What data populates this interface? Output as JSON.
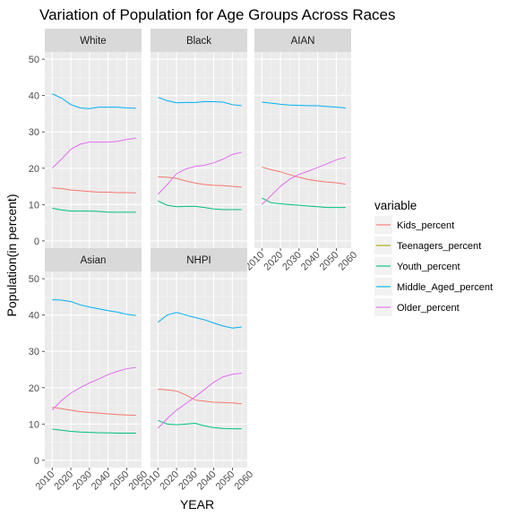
{
  "chart_data": {
    "type": "line",
    "title": "Variation of Population for Age Groups Across Races",
    "xlabel": "YEAR",
    "ylabel": "Population(in percent)",
    "x": [
      2010,
      2015,
      2020,
      2025,
      2030,
      2035,
      2040,
      2045,
      2050,
      2055
    ],
    "xlim": [
      2006,
      2058
    ],
    "ylim": [
      -2,
      52
    ],
    "x_ticks": [
      "2010",
      "2020",
      "2030",
      "2040",
      "2050",
      "2060"
    ],
    "y_ticks": [
      "0",
      "10",
      "20",
      "30",
      "40",
      "50"
    ],
    "grid": true,
    "legend": {
      "title": "variable",
      "position": "right",
      "entries": [
        "Kids_percent",
        "Teenagers_percent",
        "Youth_percent",
        "Middle_Aged_percent",
        "Older_percent"
      ]
    },
    "colors": {
      "Kids_percent": "#F8766D",
      "Teenagers_percent": "#A3A500",
      "Youth_percent": "#00BF7D",
      "Middle_Aged_percent": "#00B0F6",
      "Older_percent": "#E76BF3"
    },
    "panels": [
      {
        "name": "White",
        "series": [
          {
            "name": "Kids_percent",
            "values": [
              14.6,
              14.4,
              14.0,
              13.8,
              13.6,
              13.4,
              13.4,
              13.3,
              13.3,
              13.2
            ]
          },
          {
            "name": "Youth_percent",
            "values": [
              9.0,
              8.5,
              8.2,
              8.2,
              8.2,
              8.1,
              7.9,
              7.9,
              7.9,
              7.9
            ]
          },
          {
            "name": "Middle_Aged_percent",
            "values": [
              40.5,
              39.3,
              37.5,
              36.6,
              36.4,
              36.8,
              36.8,
              36.8,
              36.6,
              36.5
            ]
          },
          {
            "name": "Older_percent",
            "values": [
              20.0,
              22.5,
              25.2,
              26.6,
              27.2,
              27.2,
              27.2,
              27.4,
              27.9,
              28.3
            ]
          }
        ]
      },
      {
        "name": "Black",
        "series": [
          {
            "name": "Kids_percent",
            "values": [
              17.6,
              17.5,
              17.2,
              16.5,
              15.9,
              15.5,
              15.3,
              15.2,
              15.0,
              14.8
            ]
          },
          {
            "name": "Youth_percent",
            "values": [
              11.0,
              9.8,
              9.4,
              9.5,
              9.5,
              9.2,
              8.8,
              8.6,
              8.6,
              8.6
            ]
          },
          {
            "name": "Middle_Aged_percent",
            "values": [
              39.5,
              38.6,
              38.0,
              38.1,
              38.1,
              38.3,
              38.3,
              38.2,
              37.5,
              37.2
            ]
          },
          {
            "name": "Older_percent",
            "values": [
              12.8,
              15.5,
              18.5,
              19.8,
              20.5,
              20.8,
              21.5,
              22.5,
              23.8,
              24.4
            ]
          }
        ]
      },
      {
        "name": "AIAN",
        "series": [
          {
            "name": "Kids_percent",
            "values": [
              20.3,
              19.6,
              19.0,
              18.2,
              17.5,
              16.9,
              16.5,
              16.2,
              16.0,
              15.6
            ]
          },
          {
            "name": "Youth_percent",
            "values": [
              11.8,
              10.5,
              10.2,
              10.0,
              9.8,
              9.6,
              9.4,
              9.2,
              9.2,
              9.2
            ]
          },
          {
            "name": "Middle_Aged_percent",
            "values": [
              38.2,
              37.9,
              37.6,
              37.4,
              37.3,
              37.2,
              37.2,
              37.0,
              36.8,
              36.6
            ]
          },
          {
            "name": "Older_percent",
            "values": [
              10.0,
              12.5,
              15.0,
              17.0,
              18.3,
              19.2,
              20.2,
              21.2,
              22.3,
              23.0
            ]
          }
        ]
      },
      {
        "name": "Asian",
        "series": [
          {
            "name": "Kids_percent",
            "values": [
              14.6,
              14.2,
              13.8,
              13.4,
              13.2,
              13.0,
              12.8,
              12.6,
              12.5,
              12.4
            ]
          },
          {
            "name": "Youth_percent",
            "values": [
              8.6,
              8.3,
              8.0,
              7.8,
              7.7,
              7.6,
              7.6,
              7.5,
              7.5,
              7.5
            ]
          },
          {
            "name": "Middle_Aged_percent",
            "values": [
              44.2,
              44.1,
              43.7,
              42.8,
              42.2,
              41.7,
              41.2,
              40.8,
              40.2,
              39.9
            ]
          },
          {
            "name": "Older_percent",
            "values": [
              13.9,
              16.5,
              18.5,
              20.0,
              21.3,
              22.4,
              23.6,
              24.5,
              25.2,
              25.6
            ]
          }
        ]
      },
      {
        "name": "NHPI",
        "series": [
          {
            "name": "Kids_percent",
            "values": [
              19.6,
              19.4,
              19.1,
              18.0,
              16.6,
              16.3,
              16.0,
              15.9,
              15.8,
              15.6
            ]
          },
          {
            "name": "Youth_percent",
            "values": [
              11.0,
              10.0,
              9.8,
              10.0,
              10.2,
              9.5,
              9.0,
              8.8,
              8.7,
              8.7
            ]
          },
          {
            "name": "Middle_Aged_percent",
            "values": [
              38.0,
              40.0,
              40.7,
              40.0,
              39.3,
              38.7,
              37.8,
              37.0,
              36.4,
              36.7
            ]
          },
          {
            "name": "Older_percent",
            "values": [
              8.8,
              11.5,
              13.8,
              15.6,
              17.5,
              19.5,
              21.5,
              23.0,
              23.7,
              24.0
            ]
          }
        ]
      }
    ]
  }
}
